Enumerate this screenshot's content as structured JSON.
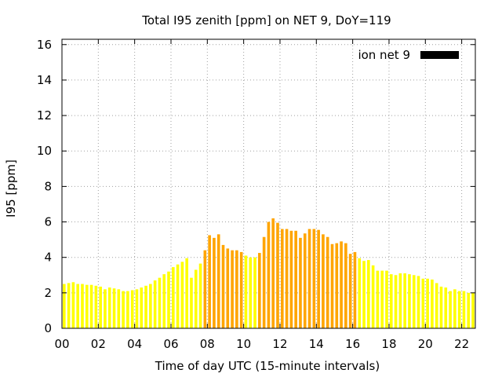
{
  "chart_data": {
    "type": "bar",
    "title": "Total I95 zenith [ppm] on NET 9, DoY=119",
    "xlabel": "Time of day UTC (15-minute intervals)",
    "ylabel": "I95 [ppm]",
    "ylim": [
      0,
      16.3
    ],
    "xlim": [
      0,
      22.75
    ],
    "y_ticks": [
      "0",
      "2",
      "4",
      "6",
      "8",
      "10",
      "12",
      "14",
      "16"
    ],
    "x_ticks": [
      "00",
      "02",
      "04",
      "06",
      "08",
      "10",
      "12",
      "14",
      "16",
      "18",
      "20",
      "22"
    ],
    "grid": true,
    "legend": {
      "label": "ion net 9",
      "color": "#000000",
      "placement": "top-right"
    },
    "colors": {
      "low": "#ffff00",
      "high": "#ffa500"
    },
    "high_intervals": [
      [
        7.75,
        10.0
      ],
      [
        10.75,
        16.25
      ]
    ],
    "bar_width_hours": 0.2,
    "x": [
      0.0,
      0.25,
      0.5,
      0.75,
      1.0,
      1.25,
      1.5,
      1.75,
      2.0,
      2.25,
      2.5,
      2.75,
      3.0,
      3.25,
      3.5,
      3.75,
      4.0,
      4.25,
      4.5,
      4.75,
      5.0,
      5.25,
      5.5,
      5.75,
      6.0,
      6.25,
      6.5,
      6.75,
      7.0,
      7.25,
      7.5,
      7.75,
      8.0,
      8.25,
      8.5,
      8.75,
      9.0,
      9.25,
      9.5,
      9.75,
      10.0,
      10.25,
      10.5,
      10.75,
      11.0,
      11.25,
      11.5,
      11.75,
      12.0,
      12.25,
      12.5,
      12.75,
      13.0,
      13.25,
      13.5,
      13.75,
      14.0,
      14.25,
      14.5,
      14.75,
      15.0,
      15.25,
      15.5,
      15.75,
      16.0,
      16.25,
      16.5,
      16.75,
      17.0,
      17.25,
      17.5,
      17.75,
      18.0,
      18.25,
      18.5,
      18.75,
      19.0,
      19.25,
      19.5,
      19.75,
      20.0,
      20.25,
      20.5,
      20.75,
      21.0,
      21.25,
      21.5,
      21.75,
      22.0,
      22.25,
      22.5
    ],
    "values": [
      2.5,
      2.55,
      2.6,
      2.5,
      2.5,
      2.45,
      2.45,
      2.4,
      2.35,
      2.2,
      2.3,
      2.25,
      2.2,
      2.1,
      2.1,
      2.15,
      2.2,
      2.3,
      2.4,
      2.5,
      2.7,
      2.85,
      3.05,
      3.2,
      3.45,
      3.6,
      3.75,
      3.95,
      2.85,
      3.3,
      3.65,
      4.4,
      5.25,
      5.1,
      5.3,
      4.7,
      4.5,
      4.4,
      4.4,
      4.3,
      4.1,
      4.0,
      4.0,
      4.25,
      5.15,
      6.0,
      6.2,
      5.95,
      5.6,
      5.6,
      5.5,
      5.5,
      5.1,
      5.35,
      5.6,
      5.6,
      5.55,
      5.3,
      5.15,
      4.75,
      4.8,
      4.9,
      4.8,
      4.2,
      4.3,
      3.95,
      3.8,
      3.85,
      3.55,
      3.25,
      3.25,
      3.25,
      3.05,
      3.0,
      3.1,
      3.1,
      3.05,
      3.0,
      2.95,
      2.8,
      2.8,
      2.75,
      2.55,
      2.35,
      2.3,
      2.1,
      2.2,
      2.1,
      2.1,
      2.0,
      2.0
    ]
  }
}
